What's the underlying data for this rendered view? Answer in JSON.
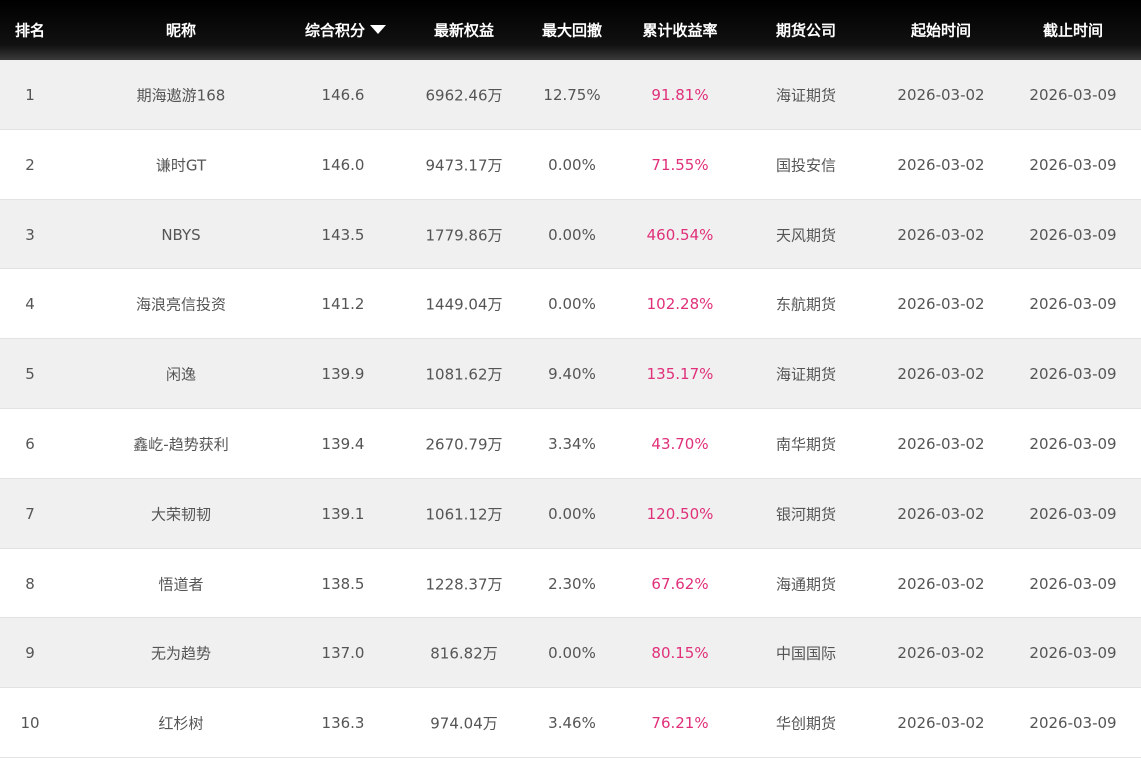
{
  "table": {
    "headers": [
      "排名",
      "昵称",
      "综合积分",
      "最新权益",
      "最大回撤",
      "累计收益率",
      "期货公司",
      "起始时间",
      "截止时间"
    ],
    "rows": [
      [
        "1",
        "期海遨游168",
        "146.6",
        "6962.46万",
        "12.75%",
        "91.81%",
        "海证期货",
        "2026-03-02",
        "2026-03-09"
      ],
      [
        "2",
        "谦时GT",
        "146.0",
        "9473.17万",
        "0.00%",
        "71.55%",
        "国投安信",
        "2026-03-02",
        "2026-03-09"
      ],
      [
        "3",
        "NBYS",
        "143.5",
        "1779.86万",
        "0.00%",
        "460.54%",
        "天风期货",
        "2026-03-02",
        "2026-03-09"
      ],
      [
        "4",
        "海浪亮信投资",
        "141.2",
        "1449.04万",
        "0.00%",
        "102.28%",
        "东航期货",
        "2026-03-02",
        "2026-03-09"
      ],
      [
        "5",
        "闲逸",
        "139.9",
        "1081.62万",
        "9.40%",
        "135.17%",
        "海证期货",
        "2026-03-02",
        "2026-03-09"
      ],
      [
        "6",
        "鑫屹-趋势获利",
        "139.4",
        "2670.79万",
        "3.34%",
        "43.70%",
        "南华期货",
        "2026-03-02",
        "2026-03-09"
      ],
      [
        "7",
        "大荣韧韧",
        "139.1",
        "1061.12万",
        "0.00%",
        "120.50%",
        "银河期货",
        "2026-03-02",
        "2026-03-09"
      ],
      [
        "8",
        "悟道者",
        "138.5",
        "1228.37万",
        "2.30%",
        "67.62%",
        "海通期货",
        "2026-03-02",
        "2026-03-09"
      ],
      [
        "9",
        "无为趋势",
        "137.0",
        "816.82万",
        "0.00%",
        "80.15%",
        "中国国际",
        "2026-03-02",
        "2026-03-09"
      ],
      [
        "10",
        "红杉树",
        "136.3",
        "974.04万",
        "3.46%",
        "76.21%",
        "华创期货",
        "2026-03-02",
        "2026-03-09"
      ]
    ]
  }
}
